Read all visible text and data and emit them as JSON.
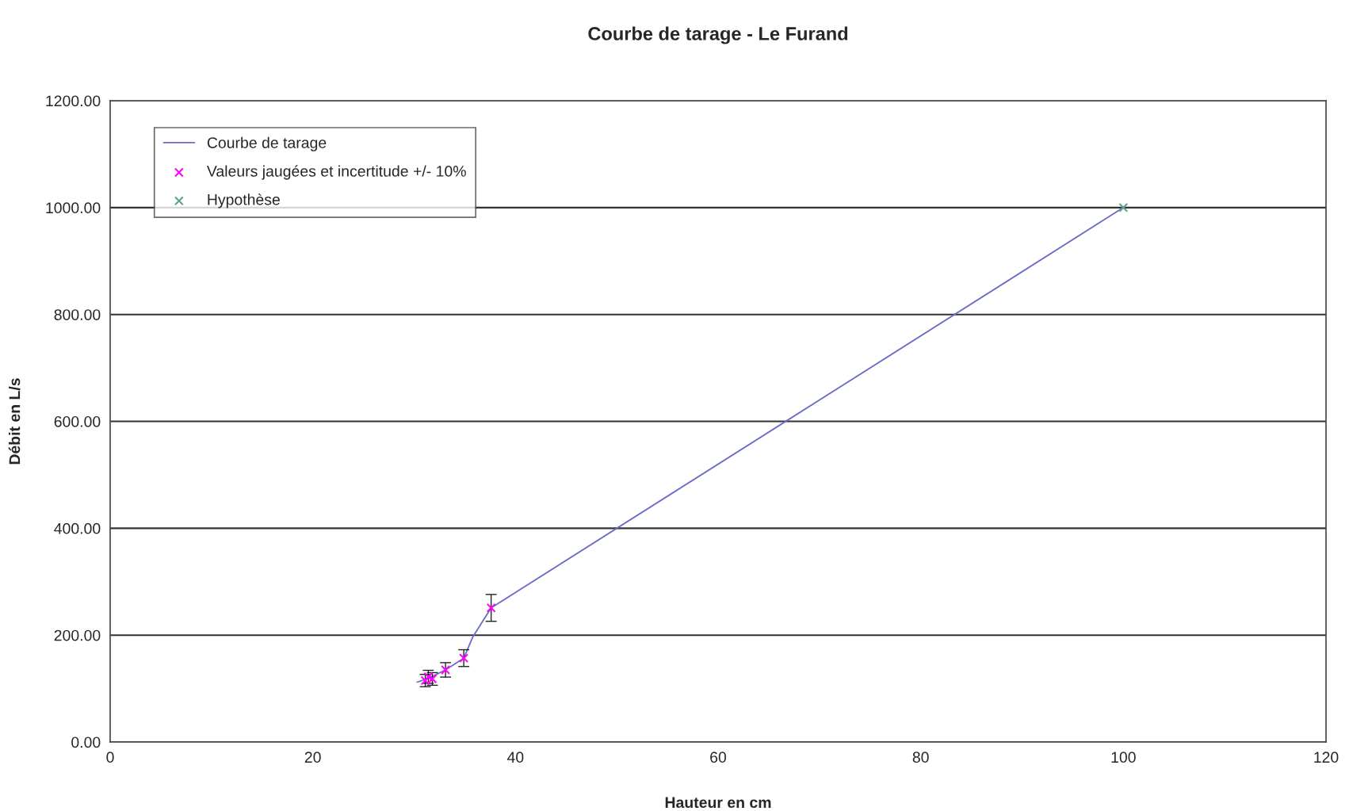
{
  "chart_data": {
    "type": "line",
    "title": "Courbe de tarage - Le Furand",
    "xlabel": "Hauteur en cm",
    "ylabel": "Débit en L/s",
    "xlim": [
      0,
      120
    ],
    "xticks": [
      0,
      20,
      40,
      60,
      80,
      100,
      120
    ],
    "ylim": [
      0,
      1200
    ],
    "yticks": [
      {
        "value": 0,
        "label": "0.00"
      },
      {
        "value": 200,
        "label": "200.00"
      },
      {
        "value": 400,
        "label": "400.00"
      },
      {
        "value": 600,
        "label": "600.00"
      },
      {
        "value": 800,
        "label": "800.00"
      },
      {
        "value": 1000,
        "label": "1000.00"
      },
      {
        "value": 1200,
        "label": "1200.00"
      }
    ],
    "grid": "y",
    "legend": "top left",
    "series": [
      {
        "name": "Courbe de tarage",
        "color": "#6a6ac8",
        "marker": "none",
        "line_style": "solid",
        "x": [
          30.3,
          31.5,
          33.1,
          34.9,
          35.8,
          37.6,
          100
        ],
        "values": [
          112,
          120,
          135,
          157,
          197,
          251,
          1000
        ]
      },
      {
        "name": "Valeurs jaugées et incertitude +/- 10%",
        "type": "scatter",
        "color": "#ff00ff",
        "marker": "cross",
        "x": [
          31.1,
          31.4,
          31.8,
          33.1,
          34.9,
          37.6
        ],
        "values": [
          115,
          122,
          118,
          135,
          157,
          251
        ],
        "errors": [
          11.5,
          12.2,
          11.8,
          13.5,
          15.7,
          25.1
        ]
      },
      {
        "name": "Hypothèse",
        "type": "scatter",
        "color": "#5f9f8f",
        "marker": "cross",
        "x": [
          100
        ],
        "values": [
          1000
        ]
      }
    ]
  }
}
